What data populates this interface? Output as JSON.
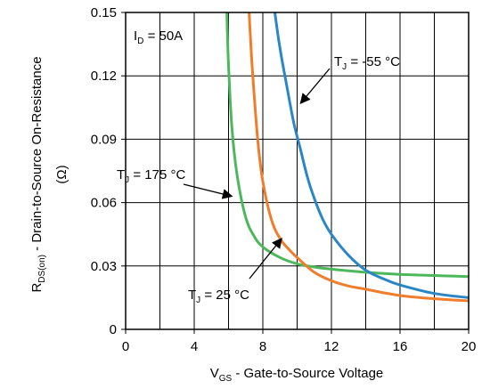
{
  "chart_data": {
    "type": "line",
    "title": "",
    "xlabel": {
      "main": "V",
      "sub": "GS",
      "rest": " - Gate-to-Source Voltage"
    },
    "ylabel": {
      "main": "R",
      "sub": "DS(on)",
      "rest": " - Drain-to-Source On-Resistance",
      "line2": "(Ω)"
    },
    "xlim": [
      0,
      20
    ],
    "ylim": [
      0,
      0.15
    ],
    "x_ticks": [
      0,
      4,
      8,
      12,
      16,
      20
    ],
    "x_tick_labels": [
      "0",
      "4",
      "8",
      "12",
      "16",
      "20"
    ],
    "y_ticks": [
      0,
      0.03,
      0.06,
      0.09,
      0.12,
      0.15
    ],
    "y_tick_labels": [
      "0",
      "0.03",
      "0.06",
      "0.09",
      "0.12",
      "0.15"
    ],
    "x_gridlines": [
      2,
      4,
      6,
      8,
      10,
      12,
      14,
      16,
      18
    ],
    "y_gridlines": [
      0.03,
      0.06,
      0.09,
      0.12
    ],
    "grid": true,
    "condition": {
      "main": "I",
      "sub": "D",
      "rest": " = 50A"
    },
    "series": [
      {
        "name": "TJ = 175 °C",
        "color": "#4cb85c",
        "x": [
          5.9,
          6.0,
          6.2,
          6.5,
          7.0,
          7.5,
          8.0,
          9.0,
          10.0,
          11.0,
          12.0,
          14.0,
          16.0,
          18.0,
          20.0
        ],
        "y": [
          0.15,
          0.125,
          0.095,
          0.073,
          0.053,
          0.044,
          0.039,
          0.034,
          0.031,
          0.0295,
          0.0285,
          0.027,
          0.026,
          0.0255,
          0.025
        ]
      },
      {
        "name": "TJ = 25 °C",
        "color": "#f07d2c",
        "x": [
          7.2,
          7.4,
          7.7,
          8.0,
          8.5,
          9.0,
          9.5,
          10.0,
          11.0,
          12.0,
          13.0,
          14.0,
          16.0,
          18.0,
          20.0
        ],
        "y": [
          0.15,
          0.122,
          0.09,
          0.07,
          0.052,
          0.043,
          0.038,
          0.034,
          0.027,
          0.023,
          0.0205,
          0.019,
          0.016,
          0.0145,
          0.0135
        ]
      },
      {
        "name": "TJ = -55 °C",
        "color": "#2a86c4",
        "x": [
          8.7,
          9.0,
          9.4,
          9.8,
          10.2,
          10.6,
          11.0,
          11.5,
          12.0,
          13.0,
          14.0,
          15.0,
          16.0,
          18.0,
          20.0
        ],
        "y": [
          0.15,
          0.133,
          0.115,
          0.098,
          0.085,
          0.072,
          0.062,
          0.052,
          0.045,
          0.035,
          0.028,
          0.024,
          0.021,
          0.017,
          0.015
        ]
      }
    ],
    "annotations": [
      {
        "main": "T",
        "sub": "J",
        "rest": " = 175 °C",
        "points_to": [
          6.2,
          0.063
        ]
      },
      {
        "main": "T",
        "sub": "J",
        "rest": " = 25 °C",
        "points_to": [
          9.1,
          0.043
        ]
      },
      {
        "main": "T",
        "sub": "J",
        "rest": " = -55 °C",
        "points_to": [
          10.2,
          0.107
        ]
      }
    ]
  }
}
